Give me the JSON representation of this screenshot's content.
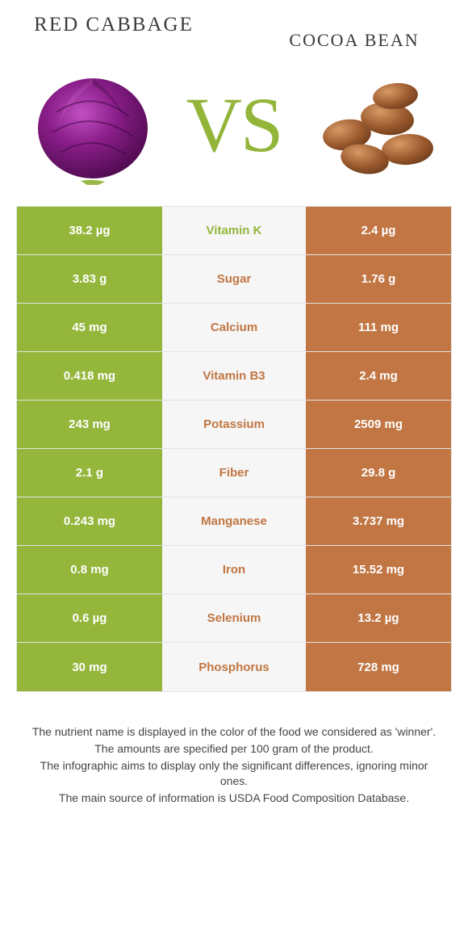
{
  "colors": {
    "left": "#94b63b",
    "right": "#c17643",
    "mid_bg": "#f6f6f6",
    "mid_text_left": "#94b63b",
    "mid_text_right": "#c17643"
  },
  "header": {
    "left_title": "RED CABBAGE",
    "right_title": "COCOA BEAN",
    "vs": "VS"
  },
  "rows": [
    {
      "label": "Vitamin K",
      "left": "38.2 µg",
      "right": "2.4 µg",
      "winner": "left"
    },
    {
      "label": "Sugar",
      "left": "3.83 g",
      "right": "1.76 g",
      "winner": "right"
    },
    {
      "label": "Calcium",
      "left": "45 mg",
      "right": "111 mg",
      "winner": "right"
    },
    {
      "label": "Vitamin B3",
      "left": "0.418 mg",
      "right": "2.4 mg",
      "winner": "right"
    },
    {
      "label": "Potassium",
      "left": "243 mg",
      "right": "2509 mg",
      "winner": "right"
    },
    {
      "label": "Fiber",
      "left": "2.1 g",
      "right": "29.8 g",
      "winner": "right"
    },
    {
      "label": "Manganese",
      "left": "0.243 mg",
      "right": "3.737 mg",
      "winner": "right"
    },
    {
      "label": "Iron",
      "left": "0.8 mg",
      "right": "15.52 mg",
      "winner": "right"
    },
    {
      "label": "Selenium",
      "left": "0.6 µg",
      "right": "13.2 µg",
      "winner": "right"
    },
    {
      "label": "Phosphorus",
      "left": "30 mg",
      "right": "728 mg",
      "winner": "right"
    }
  ],
  "footer": [
    "The nutrient name is displayed in the color of the food we considered as 'winner'.",
    "The amounts are specified per 100 gram of the product.",
    "The infographic aims to display only the significant differences, ignoring minor ones.",
    "The main source of information is USDA Food Composition Database."
  ]
}
